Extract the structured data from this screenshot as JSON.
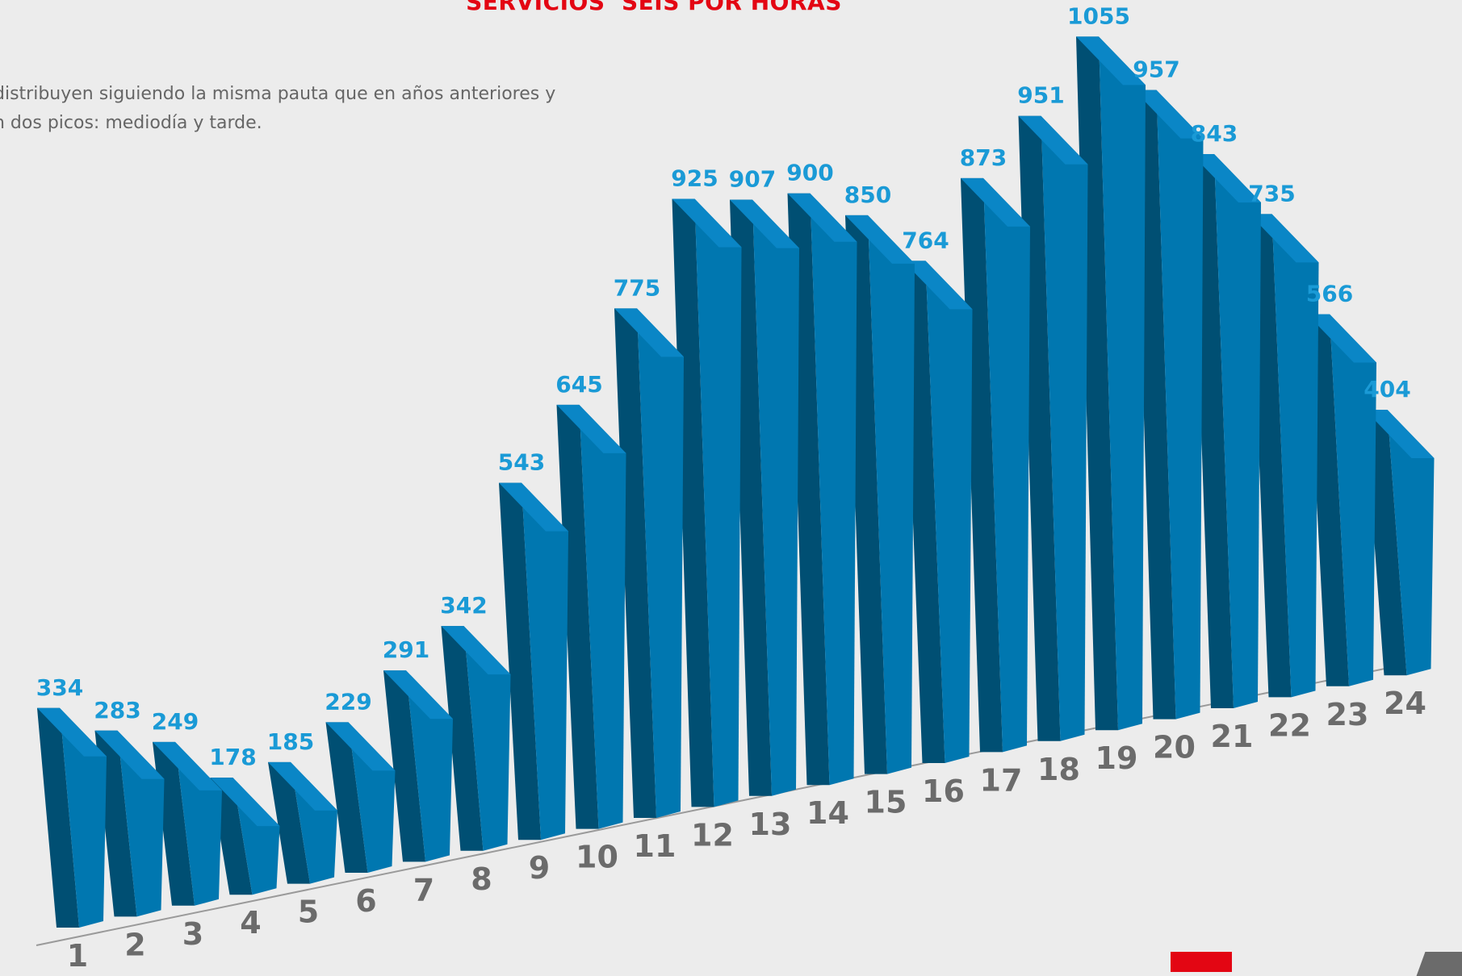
{
  "header": {
    "title": "SERVICIOS  SEIS POR HORAS",
    "description_line1": "distribuyen siguiendo la misma pauta que en años anteriores y",
    "description_line2": "n dos picos: mediodía y tarde."
  },
  "colors": {
    "title": "#e30613",
    "value_label": "#1a9ad6",
    "bar_front": "#004f73",
    "bar_side": "#0077b0",
    "bar_top": "#0a86c6",
    "category_label": "#6b6b6b",
    "baseline": "#9a9a9a"
  },
  "chart_data": {
    "type": "bar",
    "categories": [
      "1",
      "2",
      "3",
      "4",
      "5",
      "6",
      "7",
      "8",
      "9",
      "10",
      "11",
      "12",
      "13",
      "14",
      "15",
      "16",
      "17",
      "18",
      "19",
      "20",
      "21",
      "22",
      "23",
      "24"
    ],
    "values": [
      334,
      283,
      249,
      178,
      185,
      229,
      291,
      342,
      543,
      645,
      775,
      925,
      907,
      900,
      850,
      764,
      873,
      951,
      1055,
      957,
      843,
      735,
      566,
      404
    ],
    "title": "SERVICIOS  SEIS POR HORAS",
    "xlabel": "",
    "ylabel": "",
    "ylim": [
      0,
      1100
    ],
    "grid": false,
    "legend": "none"
  }
}
